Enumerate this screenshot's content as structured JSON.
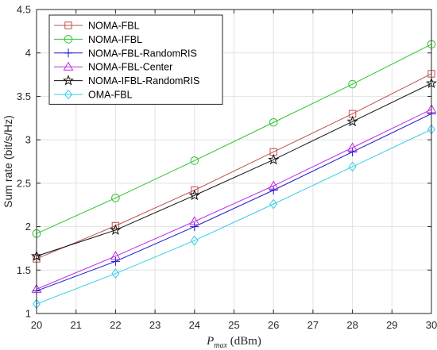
{
  "chart_data": {
    "type": "line",
    "xlabel": {
      "main": "P",
      "sub": "max",
      "unit": " (dBm)"
    },
    "ylabel": "Sum rate (bit/s/Hz)",
    "xlim": [
      20,
      30
    ],
    "ylim": [
      1,
      4.5
    ],
    "xticks": [
      20,
      21,
      22,
      23,
      24,
      25,
      26,
      27,
      28,
      29,
      30
    ],
    "yticks": [
      1,
      1.5,
      2,
      2.5,
      3,
      3.5,
      4,
      4.5
    ],
    "ytick_labels": [
      "1",
      "1.5",
      "2",
      "2.5",
      "3",
      "3.5",
      "4",
      "4.5"
    ],
    "grid": true,
    "legend_position": "top-left",
    "x": [
      20,
      22,
      24,
      26,
      28,
      30
    ],
    "series": [
      {
        "name": "NOMA-FBL",
        "values": [
          1.63,
          2.01,
          2.42,
          2.86,
          3.3,
          3.76
        ],
        "color": "#c0504d",
        "marker": "square"
      },
      {
        "name": "NOMA-IFBL",
        "values": [
          1.92,
          2.33,
          2.76,
          3.2,
          3.64,
          4.1
        ],
        "color": "#2ec42e",
        "marker": "circle"
      },
      {
        "name": "NOMA-FBL-RandomRIS",
        "values": [
          1.26,
          1.6,
          2.0,
          2.42,
          2.86,
          3.3
        ],
        "color": "#1414d2",
        "marker": "plus"
      },
      {
        "name": "NOMA-FBL-Center",
        "values": [
          1.28,
          1.66,
          2.06,
          2.47,
          2.91,
          3.35
        ],
        "color": "#bf2fe0",
        "marker": "triangle"
      },
      {
        "name": "NOMA-IFBL-RandomRIS",
        "values": [
          1.66,
          1.96,
          2.36,
          2.77,
          3.21,
          3.65
        ],
        "color": "#111111",
        "marker": "star"
      },
      {
        "name": "OMA-FBL",
        "values": [
          1.11,
          1.46,
          1.84,
          2.26,
          2.69,
          3.12
        ],
        "color": "#33cfe8",
        "marker": "diamond"
      }
    ]
  }
}
